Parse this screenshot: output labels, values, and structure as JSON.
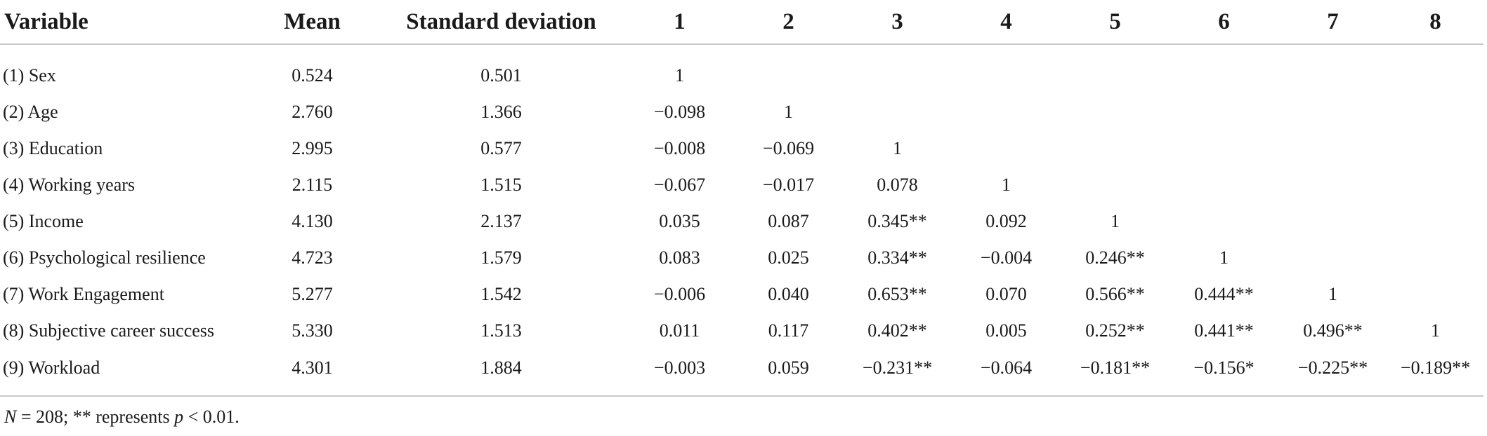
{
  "table": {
    "columns": [
      "Variable",
      "Mean",
      "Standard deviation",
      "1",
      "2",
      "3",
      "4",
      "5",
      "6",
      "7",
      "8"
    ],
    "rows": [
      [
        "(1) Sex",
        "0.524",
        "0.501",
        "1",
        "",
        "",
        "",
        "",
        "",
        "",
        ""
      ],
      [
        "(2) Age",
        "2.760",
        "1.366",
        "−0.098",
        "1",
        "",
        "",
        "",
        "",
        "",
        ""
      ],
      [
        "(3) Education",
        "2.995",
        "0.577",
        "−0.008",
        "−0.069",
        "1",
        "",
        "",
        "",
        "",
        ""
      ],
      [
        "(4) Working years",
        "2.115",
        "1.515",
        "−0.067",
        "−0.017",
        "0.078",
        "1",
        "",
        "",
        "",
        ""
      ],
      [
        "(5) Income",
        "4.130",
        "2.137",
        "0.035",
        "0.087",
        "0.345**",
        "0.092",
        "1",
        "",
        "",
        ""
      ],
      [
        "(6) Psychological resilience",
        "4.723",
        "1.579",
        "0.083",
        "0.025",
        "0.334**",
        "−0.004",
        "0.246**",
        "1",
        "",
        ""
      ],
      [
        "(7) Work Engagement",
        "5.277",
        "1.542",
        "−0.006",
        "0.040",
        "0.653**",
        "0.070",
        "0.566**",
        "0.444**",
        "1",
        ""
      ],
      [
        "(8) Subjective career success",
        "5.330",
        "1.513",
        "0.011",
        "0.117",
        "0.402**",
        "0.005",
        "0.252**",
        "0.441**",
        "0.496**",
        "1"
      ],
      [
        "(9) Workload",
        "4.301",
        "1.884",
        "−0.003",
        "0.059",
        "−0.231**",
        "−0.064",
        "−0.181**",
        "−0.156*",
        "−0.225**",
        "−0.189**"
      ]
    ]
  },
  "footnote": {
    "n_label": "N",
    "n_value": " = 208; ** represents ",
    "p_label": "p",
    "p_value": " < 0.01."
  }
}
